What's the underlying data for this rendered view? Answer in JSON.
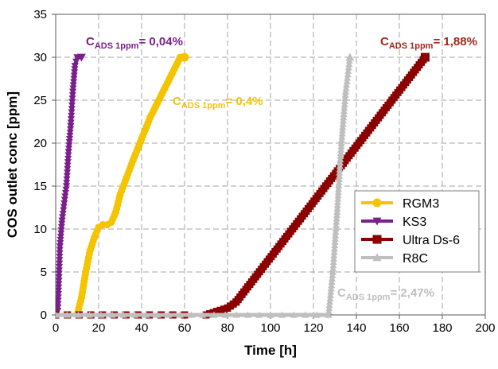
{
  "chart_data": {
    "type": "line",
    "xlabel": "Time [h]",
    "ylabel": "COS outlet conc [ppm]",
    "xlim": [
      0,
      200
    ],
    "ylim": [
      0,
      35
    ],
    "xticks": [
      0,
      20,
      40,
      60,
      80,
      100,
      120,
      140,
      160,
      180,
      200
    ],
    "yticks": [
      0,
      5,
      10,
      15,
      20,
      25,
      30,
      35
    ],
    "grid": "dashed",
    "legend_position": "right-middle",
    "series": [
      {
        "name": "RGM3",
        "color": "#F5C400",
        "marker": "circle",
        "points": [
          [
            0,
            0
          ],
          [
            10,
            0
          ],
          [
            12,
            2
          ],
          [
            14,
            5
          ],
          [
            16,
            7.5
          ],
          [
            18,
            9
          ],
          [
            20,
            10.2
          ],
          [
            22,
            10.5
          ],
          [
            24,
            10.5
          ],
          [
            26,
            10.8
          ],
          [
            28,
            12
          ],
          [
            30,
            14
          ],
          [
            33,
            16
          ],
          [
            36,
            18
          ],
          [
            40,
            20.5
          ],
          [
            44,
            23
          ],
          [
            48,
            25
          ],
          [
            52,
            27
          ],
          [
            56,
            29
          ],
          [
            58,
            30
          ],
          [
            60,
            30
          ]
        ]
      },
      {
        "name": "KS3",
        "color": "#7B1F8C",
        "marker": "triangle-down",
        "points": [
          [
            0,
            0
          ],
          [
            1,
            0.5
          ],
          [
            1.5,
            4
          ],
          [
            2,
            8
          ],
          [
            3,
            11
          ],
          [
            5,
            15
          ],
          [
            6,
            19
          ],
          [
            7,
            22
          ],
          [
            8,
            26
          ],
          [
            9,
            29
          ],
          [
            10,
            30
          ],
          [
            12,
            30
          ]
        ]
      },
      {
        "name": "Ultra Ds-6",
        "color": "#8B0000",
        "marker": "square",
        "points": [
          [
            0,
            0
          ],
          [
            60,
            0
          ],
          [
            70,
            0
          ],
          [
            75,
            0.4
          ],
          [
            80,
            0.8
          ],
          [
            84,
            1.5
          ],
          [
            172,
            30
          ]
        ]
      },
      {
        "name": "R8C",
        "color": "#BFBFBF",
        "marker": "triangle-up",
        "points": [
          [
            0,
            0
          ],
          [
            100,
            0
          ],
          [
            127,
            0
          ],
          [
            129,
            5
          ],
          [
            131,
            12
          ],
          [
            133,
            20
          ],
          [
            135,
            26
          ],
          [
            137,
            30
          ]
        ]
      }
    ],
    "annotations": [
      {
        "main": "C",
        "sub": "ADS 1ppm",
        "tail": "= 0,04%",
        "color": "#7B1F8C"
      },
      {
        "main": "C",
        "sub": "ADS 1ppm",
        "tail": "= 0,4%",
        "color": "#F5C400"
      },
      {
        "main": "C",
        "sub": "ADS 1ppm",
        "tail": "= 1,88%",
        "color": "#A0291A"
      },
      {
        "main": "C",
        "sub": "ADS 1ppm",
        "tail": "= 2,47%",
        "color": "#BFBFBF"
      }
    ]
  }
}
